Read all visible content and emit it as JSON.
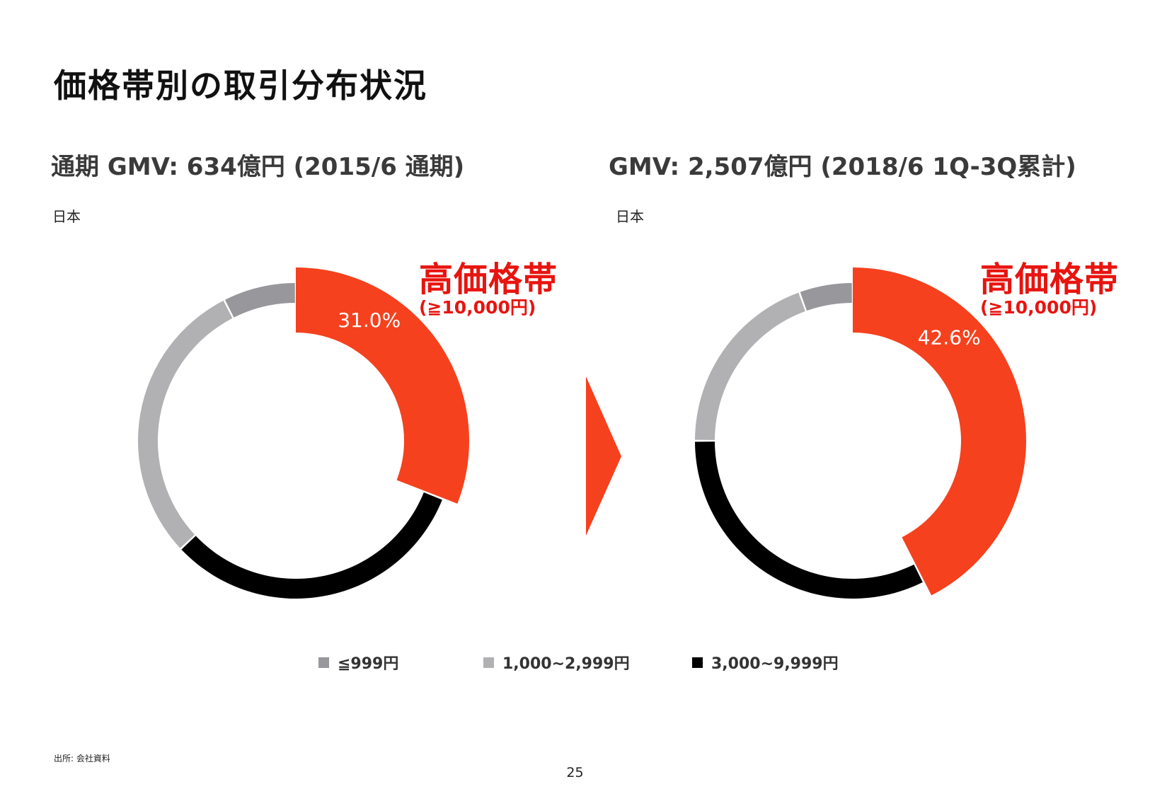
{
  "page": {
    "title": "価格帯別の取引分布状況",
    "source": "出所: 会社資料",
    "page_number": "25"
  },
  "highlight": {
    "label": "高価格帯",
    "sublabel": "(≧10,000円)"
  },
  "colors": {
    "high": "#f5411e",
    "mid_high": "#000000",
    "mid_low": "#b1b1b3",
    "low": "#97979c",
    "arrow": "#f5411e"
  },
  "legend": [
    {
      "label": "≦999円",
      "color": "#97979c"
    },
    {
      "label": "1,000~2,999円",
      "color": "#b1b1b3"
    },
    {
      "label": "3,000~9,999円",
      "color": "#000000"
    }
  ],
  "chart_data": [
    {
      "type": "pie",
      "title": "通期 GMV: 634億円 (2015/6 通期)",
      "region": "日本",
      "categories": [
        "≧10,000円",
        "3,000~9,999円",
        "1,000~2,999円",
        "≦999円"
      ],
      "values": [
        31.0,
        32.0,
        29.5,
        7.5
      ],
      "value_label": "31.0%"
    },
    {
      "type": "pie",
      "title": "GMV: 2,507億円 (2018/6 1Q-3Q累計)",
      "region": "日本",
      "categories": [
        "≧10,000円",
        "3,000~9,999円",
        "1,000~2,999円",
        "≦999円"
      ],
      "values": [
        42.6,
        32.4,
        19.5,
        5.5
      ],
      "value_label": "42.6%"
    }
  ]
}
